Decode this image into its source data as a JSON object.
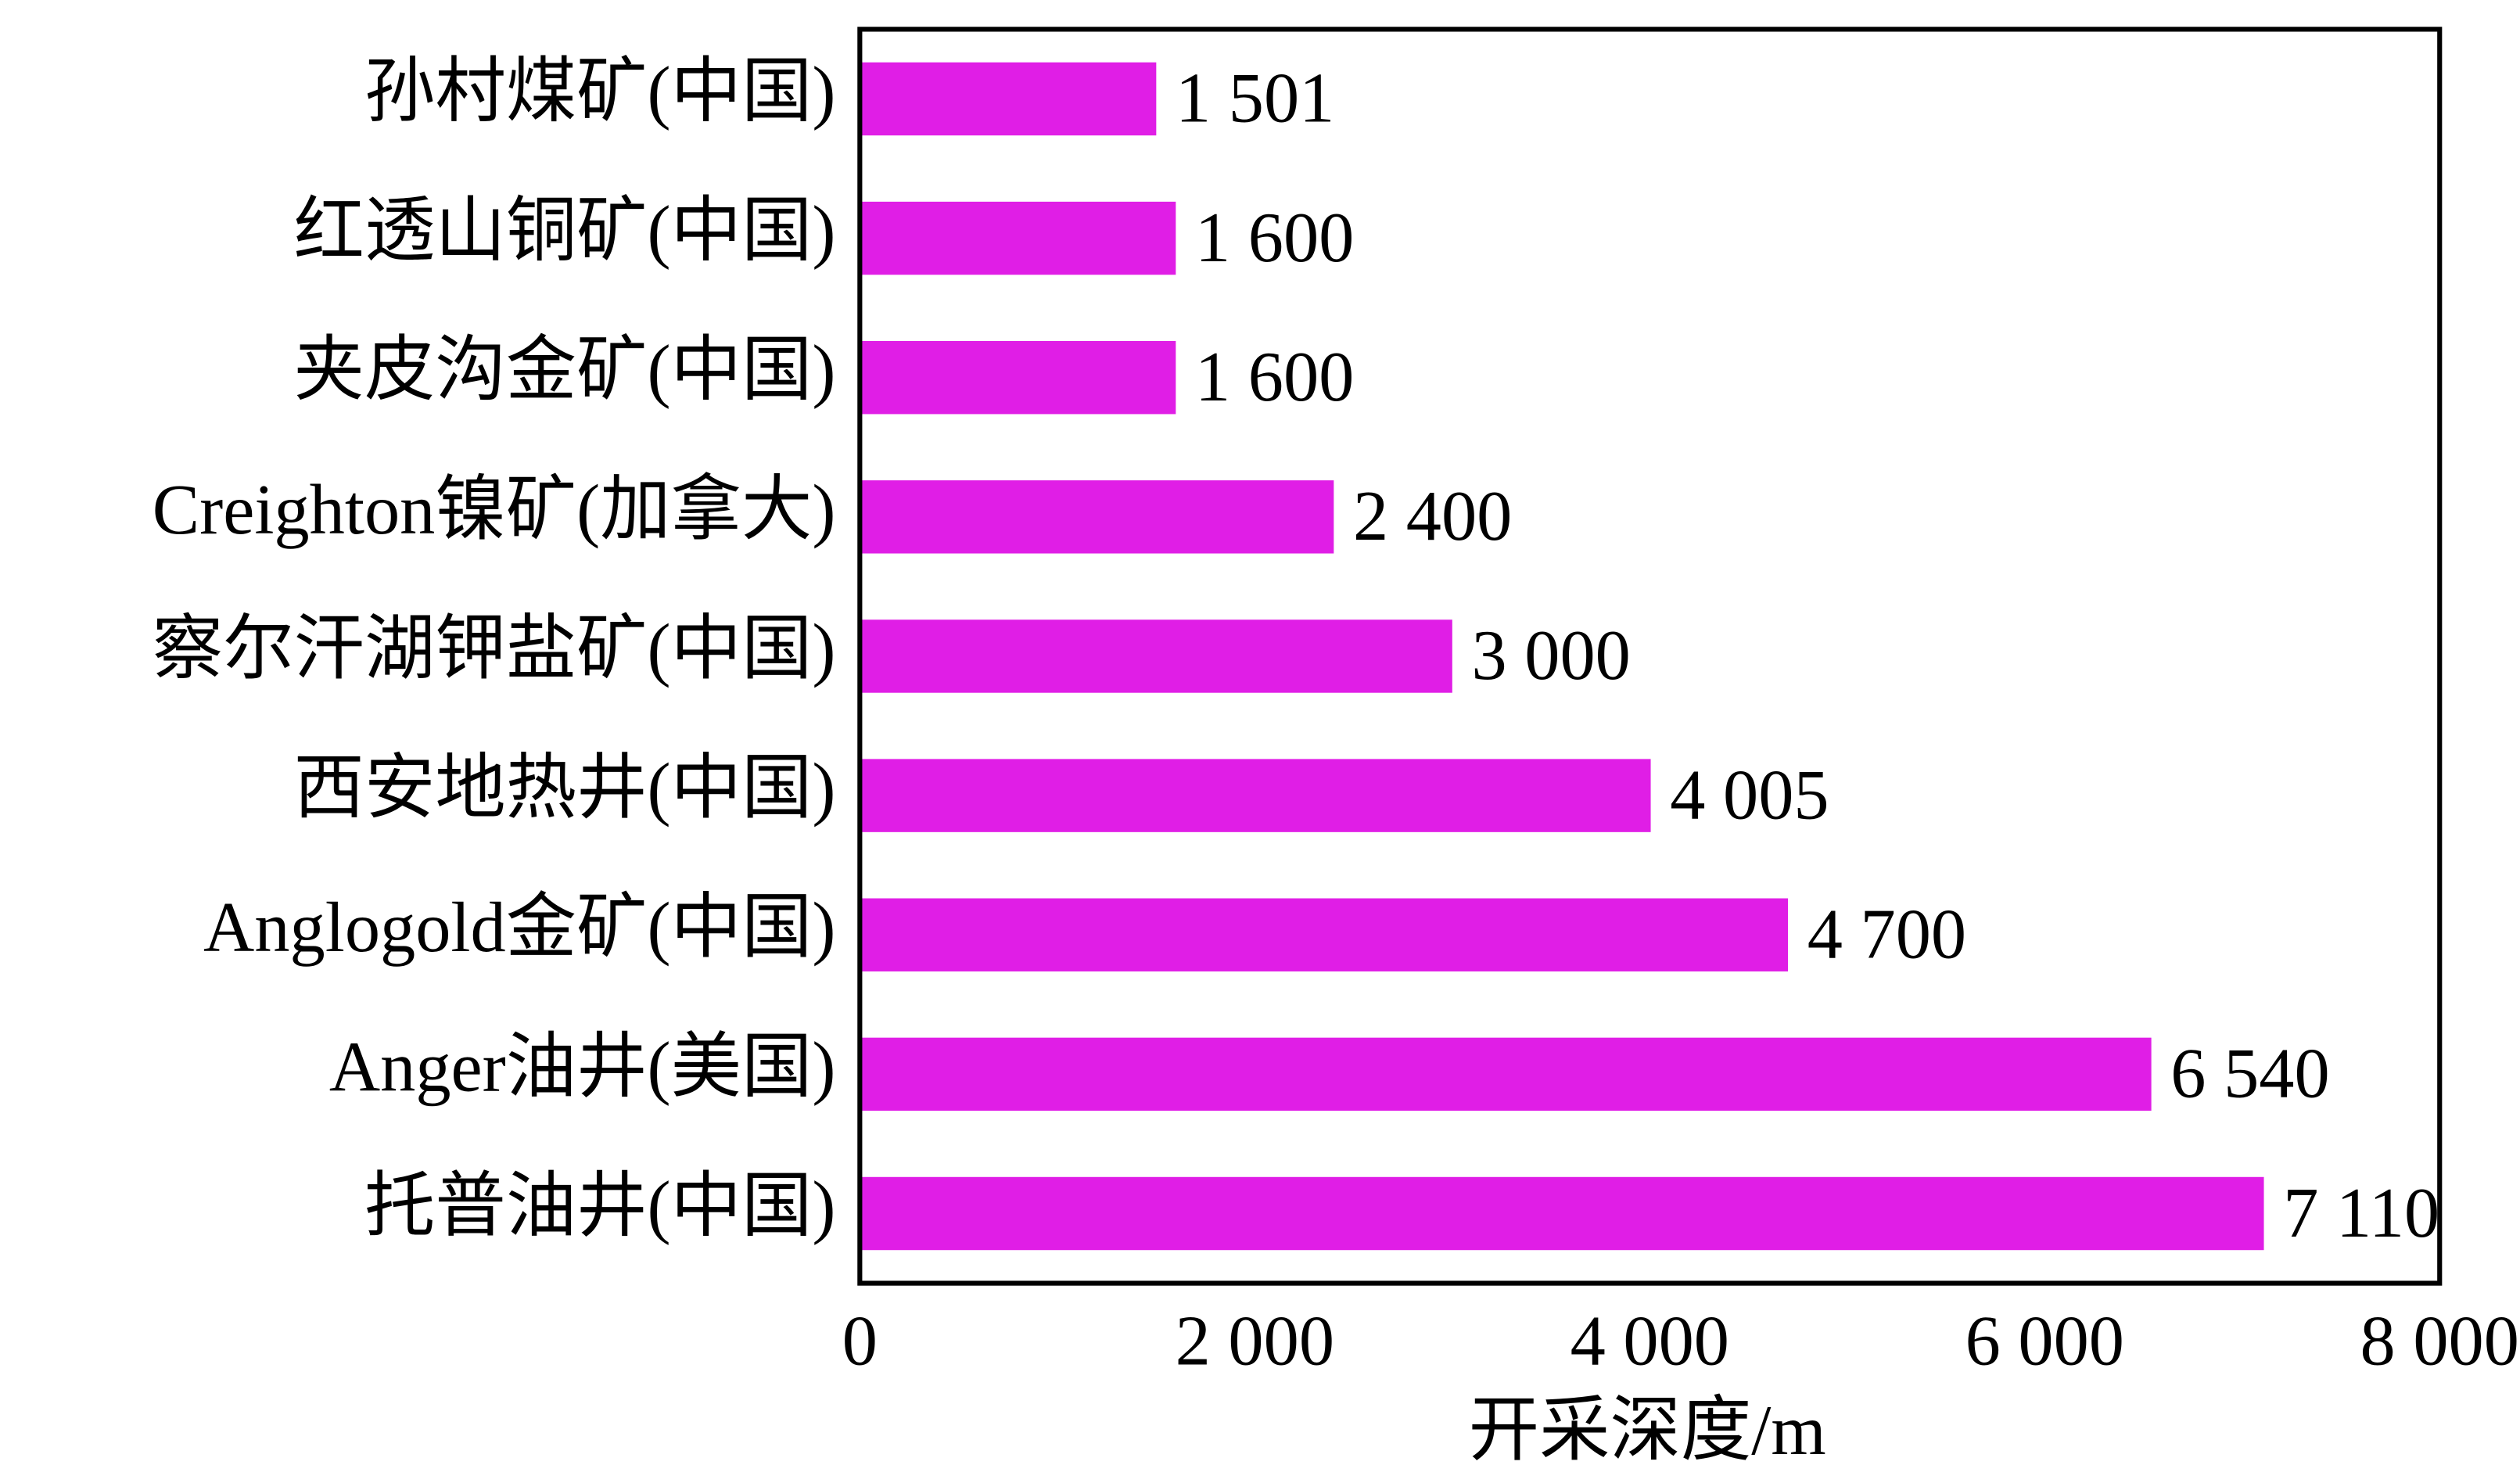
{
  "chart_data": {
    "type": "bar",
    "orientation": "horizontal",
    "x_label": "开采深度/m",
    "categories": [
      "孙村煤矿(中国)",
      "红透山铜矿(中国)",
      "夹皮沟金矿(中国)",
      "Creighton镍矿(加拿大)",
      "察尔汗湖钾盐矿(中国)",
      "西安地热井(中国)",
      "Anglogold金矿(中国)",
      "Anger油井(美国)",
      "托普油井(中国)"
    ],
    "values": [
      1501,
      1600,
      1600,
      2400,
      3000,
      4005,
      4700,
      6540,
      7110
    ],
    "value_labels": [
      "1 501",
      "1 600",
      "1 600",
      "2 400",
      "3 000",
      "4 005",
      "4 700",
      "6 540",
      "7 110"
    ],
    "color": "#e01ee6",
    "xlim": [
      0,
      8000
    ],
    "xticks": [
      0,
      {
        "value": 2000,
        "label": "2 000"
      },
      {
        "value": 4000,
        "label": "4 000"
      },
      {
        "value": 6000,
        "label": "6 000"
      },
      {
        "value": 8000,
        "label": "8 000"
      }
    ]
  }
}
